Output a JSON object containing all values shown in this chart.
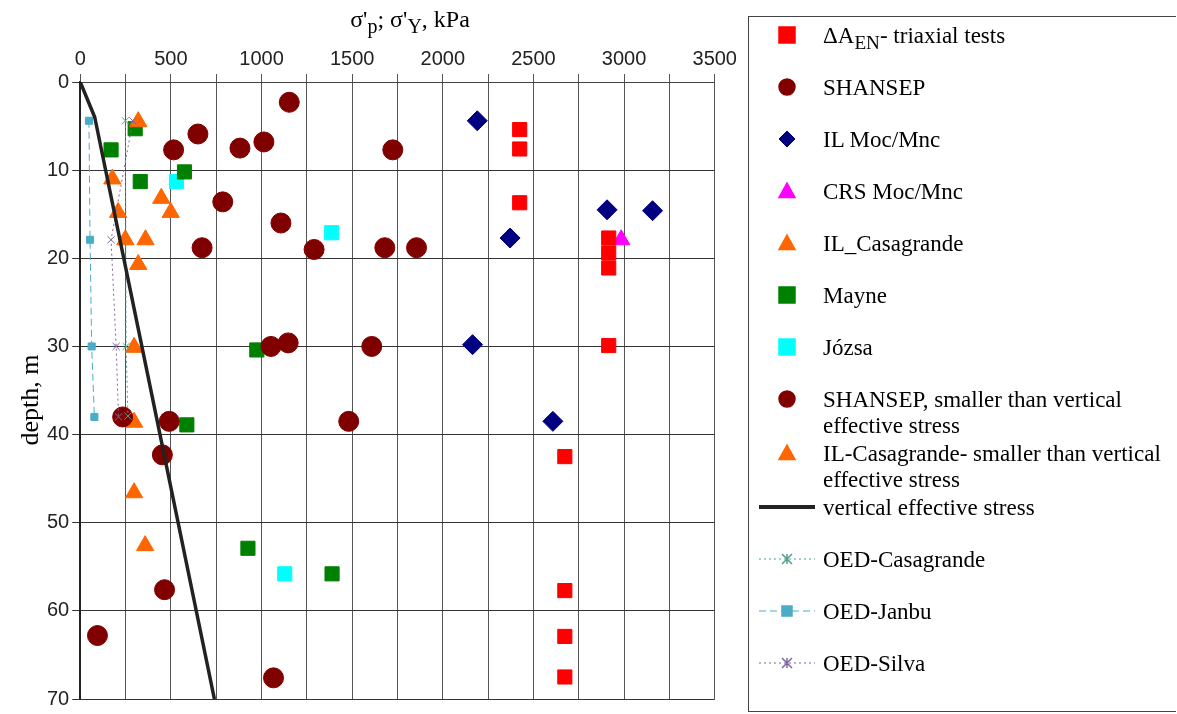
{
  "chart_data": {
    "type": "scatter",
    "xlabel": "σ'$_{p}$; σ'$_{Y}$, kPa",
    "ylabel": "depth, m",
    "xlim": [
      0,
      3500
    ],
    "ylim": [
      70,
      0
    ],
    "xticks": [
      0,
      {
        "value": 250,
        "label": null
      },
      500,
      {
        "value": 750,
        "label": null
      },
      1000,
      {
        "value": 1250,
        "label": null
      },
      1500,
      {
        "value": 1750,
        "label": null
      },
      2000,
      {
        "value": 2250,
        "label": null
      },
      2500,
      {
        "value": 2750,
        "label": null
      },
      3000,
      {
        "value": 3250,
        "label": null
      },
      3500
    ],
    "yticks": [
      0,
      10,
      20,
      30,
      40,
      50,
      60,
      70
    ],
    "grid": true,
    "legend": "right",
    "series": [
      {
        "name": "ΔA$_{EN}$- triaxial tests",
        "marker": "square",
        "color": "#ff0000",
        "x": [
          2424,
          2424,
          2424,
          2915,
          2915,
          2915,
          2915,
          2673,
          2673,
          2673,
          2673
        ],
        "values": [
          5.4,
          7.6,
          13.7,
          17.7,
          19.4,
          21.1,
          29.9,
          42.5,
          57.7,
          62.9,
          67.5
        ]
      },
      {
        "name": "SHANSEP",
        "marker": "circle",
        "color": "#800000",
        "x": [
          1153,
          649,
          515,
          881,
          1013,
          1724,
          786,
          1107,
          672,
          1290,
          1680,
          1855,
          1052,
          1147,
          1608,
          491,
          1481,
          1066
        ],
        "values": [
          2.3,
          5.9,
          7.7,
          7.5,
          6.8,
          7.7,
          13.6,
          16.0,
          18.8,
          19.0,
          18.8,
          18.8,
          30.0,
          29.6,
          30.0,
          38.5,
          38.5,
          67.6
        ]
      },
      {
        "name": "IL Moc/Mnc",
        "marker": "diamond",
        "color": "#000080",
        "x": [
          2190,
          2906,
          3157,
          2371,
          2164,
          2607
        ],
        "values": [
          4.4,
          14.5,
          14.6,
          17.7,
          29.8,
          38.5
        ]
      },
      {
        "name": "CRS Moc/Mnc",
        "marker": "triangle",
        "color": "#ff00ff",
        "x": [
          2984
        ],
        "values": [
          17.9
        ]
      },
      {
        "name": "IL_Casagrande",
        "marker": "triangle",
        "color": "#ff6600",
        "x": [
          320,
          447,
          499,
          249,
          360,
          320
        ],
        "values": [
          4.5,
          13.2,
          14.8,
          17.9,
          17.9,
          20.7
        ]
      },
      {
        "name": "Mayne",
        "marker": "square",
        "color": "#008000",
        "x": [
          303,
          170,
          575,
          331,
          974,
          588,
          925,
          1389
        ],
        "values": [
          5.3,
          7.7,
          10.2,
          11.3,
          30.4,
          38.9,
          52.9,
          55.8
        ]
      },
      {
        "name": "Józsa",
        "marker": "square",
        "color": "#00ffff",
        "x": [
          531,
          1387,
          1128
        ],
        "values": [
          11.3,
          17.1,
          55.8
        ]
      },
      {
        "name": "SHANSEP, smaller than vertical effective stress",
        "marker": "circle",
        "color": "#800000",
        "x": [
          234,
          453,
          465,
          95
        ],
        "values": [
          38.0,
          42.3,
          57.6,
          62.8
        ]
      },
      {
        "name": "IL-Casagrande- smaller than vertical effective stress",
        "marker": "triangle",
        "color": "#ff6600",
        "x": [
          177,
          209,
          297,
          297,
          297,
          358
        ],
        "values": [
          11.0,
          14.8,
          30.1,
          38.6,
          46.6,
          52.6
        ]
      },
      {
        "name": "vertical effective stress",
        "type": "line",
        "marker": "none",
        "line_style": "solid",
        "color": "#222222",
        "x": [
          0,
          80,
          740
        ],
        "values": [
          0,
          4,
          70
        ]
      },
      {
        "name": "OED-Casagrande",
        "type": "line",
        "marker": "cross",
        "line_style": "dotted",
        "color": "#4f9f8f",
        "x": [
          249,
          253,
          263
        ],
        "values": [
          4.4,
          30.0,
          37.9
        ]
      },
      {
        "name": "OED-Janbu",
        "type": "line",
        "marker": "square",
        "line_style": "dashed",
        "color": "#4bacc6",
        "x": [
          48,
          54,
          63,
          78
        ],
        "values": [
          4.4,
          17.9,
          30.0,
          38.0
        ]
      },
      {
        "name": "OED-Silva",
        "type": "line",
        "marker": "cross",
        "line_style": "dotted",
        "color": "#8064a2",
        "x": [
          290,
          170,
          198,
          211
        ],
        "values": [
          4.4,
          17.9,
          30.0,
          38.0
        ]
      }
    ]
  }
}
